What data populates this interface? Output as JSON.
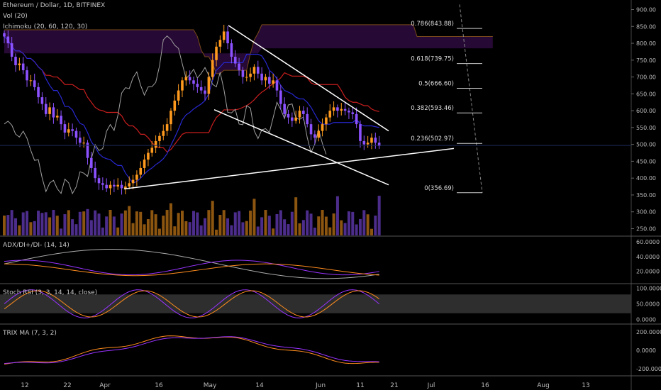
{
  "header": {
    "title": "Ethereum / Dollar, 1D, BITFINEX",
    "volume_label": "Vol (20)",
    "ichimoku_label": "Ichimoku (20, 60, 120, 30)"
  },
  "panels": {
    "adx_label": "ADX/DI+/DI- (14, 14)",
    "stoch_label": "Stoch RSI (3, 3, 14, 14, close)",
    "trix_label": "TRIX MA (7, 3, 2)"
  },
  "colors": {
    "background": "#000000",
    "up_candle": "#ff9a1e",
    "down_candle": "#8c52ff",
    "cloud": "#2a0a3a",
    "kijun": "#c81e1e",
    "tenkan": "#2828d2",
    "chikou": "#a0a0a0",
    "trendline": "#ffffff",
    "fib_line": "#cccccc"
  },
  "chart_data": [
    {
      "type": "candlestick",
      "title": "Ethereum / Dollar, 1D, BITFINEX",
      "ylim": [
        230,
        920
      ],
      "y_ticks": [
        "900.00",
        "850.00",
        "800.00",
        "750.00",
        "700.00",
        "650.00",
        "600.00",
        "550.00",
        "500.00",
        "450.00",
        "400.00",
        "350.00",
        "300.00",
        "250.00"
      ],
      "x_ticks": [
        "12",
        "22",
        "Apr",
        "16",
        "May",
        "14",
        "Jun",
        "11",
        "21",
        "Jul",
        "16",
        "Aug",
        "13"
      ],
      "current_price": 497,
      "closes": [
        820,
        800,
        760,
        735,
        740,
        720,
        690,
        690,
        670,
        640,
        620,
        590,
        610,
        580,
        585,
        560,
        535,
        545,
        540,
        520,
        505,
        505,
        460,
        430,
        400,
        385,
        380,
        370,
        380,
        375,
        380,
        370,
        375,
        385,
        395,
        410,
        430,
        455,
        475,
        490,
        510,
        525,
        540,
        560,
        600,
        630,
        660,
        690,
        700,
        690,
        680,
        670,
        660,
        650,
        700,
        750,
        790,
        810,
        835,
        800,
        760,
        740,
        720,
        700,
        700,
        710,
        730,
        710,
        690,
        700,
        680,
        690,
        660,
        620,
        590,
        580,
        570,
        580,
        600,
        590,
        560,
        530,
        520,
        540,
        560,
        580,
        600,
        610,
        600,
        605,
        600,
        595,
        590,
        560,
        510,
        500,
        505,
        520,
        505,
        495
      ]
    },
    {
      "type": "fibonacci",
      "levels": [
        {
          "label": "0.786(843.88)",
          "value": 843.88
        },
        {
          "label": "0.618(739.75)",
          "value": 739.75
        },
        {
          "label": "0.5(666.60)",
          "value": 666.6
        },
        {
          "label": "0.382(593.46)",
          "value": 593.46
        },
        {
          "label": "0.236(502.97)",
          "value": 502.97
        },
        {
          "label": "0(356.69)",
          "value": 356.69
        }
      ]
    },
    {
      "type": "line",
      "title": "ADX/DI+/DI- (14, 14)",
      "y_ticks": [
        "60.0000",
        "40.0000",
        "20.0000"
      ],
      "ylim": [
        5,
        65
      ]
    },
    {
      "type": "line",
      "title": "Stoch RSI (3, 3, 14, 14, close)",
      "y_ticks": [
        "100.0000",
        "50.0000",
        "0.0000"
      ],
      "ylim": [
        -10,
        110
      ],
      "band": [
        20,
        80
      ]
    },
    {
      "type": "line",
      "title": "TRIX MA (7, 3, 2)",
      "y_ticks": [
        "200.0000",
        "0.0000",
        "-200.0000"
      ],
      "ylim": [
        -260,
        260
      ]
    }
  ]
}
